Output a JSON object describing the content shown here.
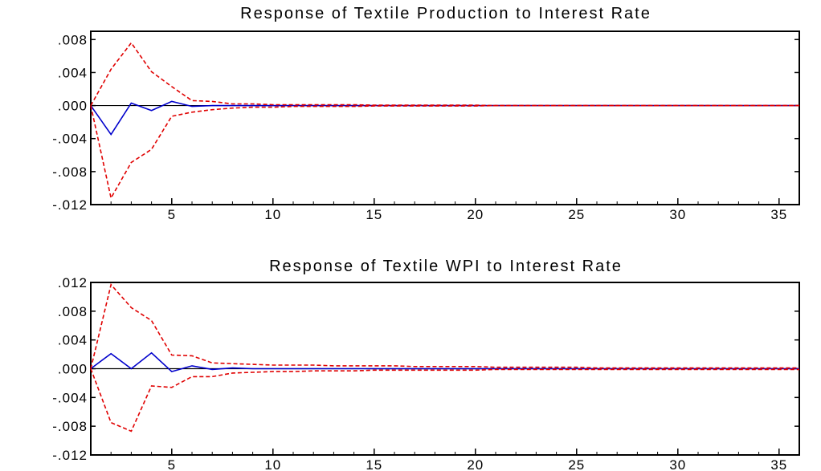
{
  "colors": {
    "impulse_response": "#0000cc",
    "confidence_band": "#e00000",
    "frame": "#000000",
    "zero_line": "#000000"
  },
  "chart_data": [
    {
      "type": "line",
      "title": "Response of Textile Production to Interest Rate",
      "x": [
        1,
        2,
        3,
        4,
        5,
        6,
        7,
        8,
        9,
        10,
        11,
        12,
        13,
        14,
        15,
        16,
        17,
        18,
        19,
        20,
        21,
        22,
        23,
        24,
        25,
        26,
        27,
        28,
        29,
        30,
        31,
        32,
        33,
        34,
        35,
        36
      ],
      "xlim": [
        1,
        36
      ],
      "ylim": [
        -0.012,
        0.009
      ],
      "yticks": [
        -0.012,
        -0.008,
        -0.004,
        0.0,
        0.004,
        0.008
      ],
      "ytick_labels": [
        "-.012",
        "-.008",
        "-.004",
        ".000",
        ".004",
        ".008"
      ],
      "xticks": [
        5,
        10,
        15,
        20,
        25,
        30,
        35
      ],
      "xtick_labels": [
        "5",
        "10",
        "15",
        "20",
        "25",
        "30",
        "35"
      ],
      "grid": false,
      "series": [
        {
          "role": "response",
          "style": "solid",
          "color": "#0000cc",
          "values": [
            0.0,
            -0.0035,
            0.0003,
            -0.0006,
            0.0005,
            -0.0001,
            0.0,
            0.0,
            0.0,
            0.0,
            0.0,
            0.0,
            0.0,
            0.0,
            0.0,
            0.0,
            0.0,
            0.0,
            0.0,
            0.0,
            0.0,
            0.0,
            0.0,
            0.0,
            0.0,
            0.0,
            0.0,
            0.0,
            0.0,
            0.0,
            0.0,
            0.0,
            0.0,
            0.0,
            0.0,
            0.0
          ]
        },
        {
          "role": "upper_band",
          "style": "dashed",
          "color": "#e00000",
          "values": [
            0.0,
            0.0044,
            0.0076,
            0.0041,
            0.0023,
            0.0006,
            0.0005,
            0.0002,
            0.0002,
            0.0001,
            0.0001,
            0.0001,
            0.0001,
            0.0001,
            5e-05,
            5e-05,
            5e-05,
            5e-05,
            5e-05,
            5e-05,
            0.0,
            0.0,
            0.0,
            0.0,
            0.0,
            0.0,
            0.0,
            0.0,
            0.0,
            0.0,
            0.0,
            0.0,
            0.0,
            0.0,
            0.0,
            0.0
          ]
        },
        {
          "role": "lower_band",
          "style": "dashed",
          "color": "#e00000",
          "values": [
            0.0,
            -0.0112,
            -0.0069,
            -0.0053,
            -0.0013,
            -0.0008,
            -0.0005,
            -0.0003,
            -0.0002,
            -0.0002,
            -0.0001,
            -0.0001,
            -0.0001,
            -0.0001,
            -5e-05,
            -5e-05,
            -5e-05,
            -5e-05,
            -5e-05,
            -5e-05,
            0.0,
            0.0,
            0.0,
            0.0,
            0.0,
            0.0,
            0.0,
            0.0,
            0.0,
            0.0,
            0.0,
            0.0,
            0.0,
            0.0,
            0.0,
            0.0
          ]
        }
      ]
    },
    {
      "type": "line",
      "title": "Response of Textile WPI to Interest Rate",
      "x": [
        1,
        2,
        3,
        4,
        5,
        6,
        7,
        8,
        9,
        10,
        11,
        12,
        13,
        14,
        15,
        16,
        17,
        18,
        19,
        20,
        21,
        22,
        23,
        24,
        25,
        26,
        27,
        28,
        29,
        30,
        31,
        32,
        33,
        34,
        35,
        36
      ],
      "xlim": [
        1,
        36
      ],
      "ylim": [
        -0.012,
        0.012
      ],
      "yticks": [
        -0.012,
        -0.008,
        -0.004,
        0.0,
        0.004,
        0.008,
        0.012
      ],
      "ytick_labels": [
        "-.012",
        "-.008",
        "-.004",
        ".000",
        ".004",
        ".008",
        ".012"
      ],
      "xticks": [
        5,
        10,
        15,
        20,
        25,
        30,
        35
      ],
      "xtick_labels": [
        "5",
        "10",
        "15",
        "20",
        "25",
        "30",
        "35"
      ],
      "grid": false,
      "series": [
        {
          "role": "response",
          "style": "solid",
          "color": "#0000cc",
          "values": [
            0.0,
            0.0021,
            0.0,
            0.0022,
            -0.0004,
            0.0004,
            -0.0001,
            0.0001,
            0.0,
            0.0,
            0.0,
            0.0,
            0.0,
            0.0,
            0.0,
            0.0,
            0.0,
            0.0,
            0.0,
            0.0,
            0.0,
            0.0,
            0.0,
            0.0,
            0.0,
            0.0,
            0.0,
            0.0,
            0.0,
            0.0,
            0.0,
            0.0,
            0.0,
            0.0,
            0.0,
            0.0
          ]
        },
        {
          "role": "upper_band",
          "style": "dashed",
          "color": "#e00000",
          "values": [
            0.0,
            0.0117,
            0.0085,
            0.0067,
            0.0019,
            0.0018,
            0.0008,
            0.0007,
            0.0006,
            0.0005,
            0.0005,
            0.0005,
            0.0004,
            0.0004,
            0.0004,
            0.0004,
            0.0003,
            0.0003,
            0.0003,
            0.0003,
            0.0002,
            0.0002,
            0.0002,
            0.0002,
            0.0002,
            0.0001,
            0.0001,
            0.0001,
            0.0001,
            0.0001,
            0.0001,
            0.0001,
            0.0001,
            0.0001,
            0.0001,
            0.0001
          ]
        },
        {
          "role": "lower_band",
          "style": "dashed",
          "color": "#e00000",
          "values": [
            0.0,
            -0.0075,
            -0.0087,
            -0.0024,
            -0.0026,
            -0.0011,
            -0.0011,
            -0.0006,
            -0.0005,
            -0.0004,
            -0.0004,
            -0.0003,
            -0.0003,
            -0.0003,
            -0.0002,
            -0.0002,
            -0.0002,
            -0.0002,
            -0.0002,
            -0.0002,
            -0.0001,
            -0.0001,
            -0.0001,
            -0.0001,
            -0.0001,
            -0.0001,
            -0.0001,
            -0.0001,
            -0.0001,
            -0.0001,
            -0.0001,
            -0.0001,
            -0.0001,
            -0.0001,
            -0.0001,
            -0.0001
          ]
        }
      ]
    }
  ]
}
